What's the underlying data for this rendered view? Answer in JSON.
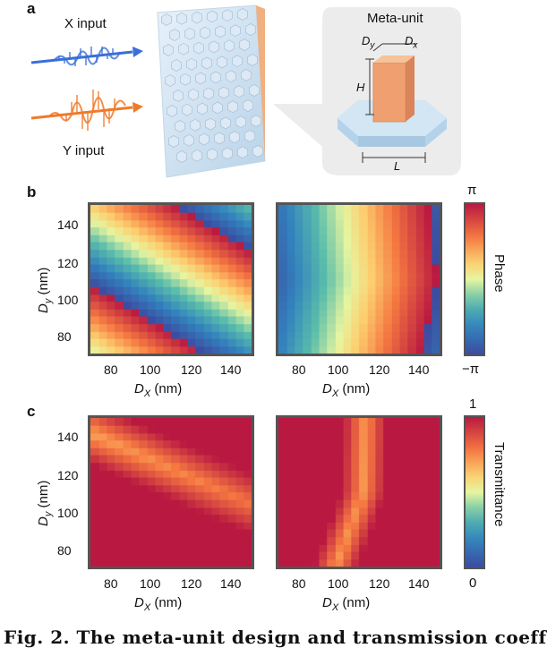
{
  "panel_a": {
    "letter": "a",
    "x_input": "X input",
    "y_input": "Y input",
    "meta_unit_title": "Meta-unit",
    "dim_dy": "D",
    "dim_dy_sub": "y",
    "dim_dx": "D",
    "dim_dx_sub": "x",
    "dim_h": "H",
    "dim_l": "L"
  },
  "panel_b": {
    "letter": "b",
    "yticks": [
      "140",
      "120",
      "100",
      "80"
    ],
    "xticks": [
      "80",
      "100",
      "120",
      "140"
    ],
    "ylabel_main": "D",
    "ylabel_sub": "y",
    "ylabel_unit": " (nm)",
    "xlabel_main": "D",
    "xlabel_sub": "X",
    "xlabel_unit": " (nm)",
    "colorbar_top": "π",
    "colorbar_bottom": "−π",
    "colorbar_label": "Phase"
  },
  "panel_c": {
    "letter": "c",
    "yticks": [
      "140",
      "120",
      "100",
      "80"
    ],
    "xticks": [
      "80",
      "100",
      "120",
      "140"
    ],
    "ylabel_main": "D",
    "ylabel_sub": "y",
    "ylabel_unit": " (nm)",
    "xlabel_main": "D",
    "xlabel_sub": "X",
    "xlabel_unit": " (nm)",
    "colorbar_top": "1",
    "colorbar_bottom": "0",
    "colorbar_label": "Transmittance"
  },
  "caption_fragment": "Fig. 2. The meta-unit design and transmission coeff",
  "colors": {
    "x_wave": "#3a6fd8",
    "y_wave": "#f07a2a",
    "pillar": "#f0a070",
    "base": "#bcd8ec"
  },
  "chart_data": [
    {
      "type": "heatmap",
      "name": "",
      "x_range": [
        70,
        150
      ],
      "y_range": [
        70,
        150
      ],
      "xlabel": "D_X (nm)",
      "ylabel": "D_y (nm)",
      "color_range": [
        "−π",
        "π"
      ],
      "colorbar_label": "Phase"
    },
    {
      "type": "heatmap",
      "name": "",
      "x_range": [
        70,
        150
      ],
      "y_range": [
        70,
        150
      ],
      "xlabel": "D_X (nm)",
      "color_range": [
        "−π",
        "π"
      ],
      "colorbar_label": "Phase"
    },
    {
      "type": "heatmap",
      "name": "",
      "x_range": [
        70,
        150
      ],
      "y_range": [
        70,
        150
      ],
      "xlabel": "D_X (nm)",
      "ylabel": "D_y (nm)",
      "color_range": [
        "0",
        "1"
      ],
      "colorbar_label": "Transmittance"
    },
    {
      "type": "heatmap",
      "name": "",
      "x_range": [
        70,
        150
      ],
      "y_range": [
        70,
        150
      ],
      "xlabel": "D_X (nm)",
      "color_range": [
        "0",
        "1"
      ],
      "colorbar_label": "Transmittance"
    }
  ]
}
